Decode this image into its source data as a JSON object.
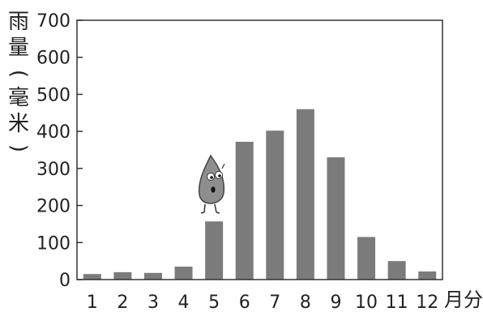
{
  "chart_data": {
    "type": "bar",
    "title": "",
    "ylabel_chars": [
      "雨",
      "量",
      "(",
      "毫",
      "米",
      ")"
    ],
    "xlabel": "月分",
    "categories": [
      "1",
      "2",
      "3",
      "4",
      "5",
      "6",
      "7",
      "8",
      "9",
      "10",
      "11",
      "12"
    ],
    "values": [
      15,
      20,
      18,
      35,
      157,
      372,
      402,
      460,
      330,
      115,
      50,
      22
    ],
    "ylim": [
      0,
      700
    ],
    "yticks": [
      0,
      100,
      200,
      300,
      400,
      500,
      600,
      700
    ],
    "grid": false,
    "legend": "none",
    "bar_color": "#7b7b7b",
    "axis_color": "#333333",
    "mascot": "raindrop-mascot"
  }
}
